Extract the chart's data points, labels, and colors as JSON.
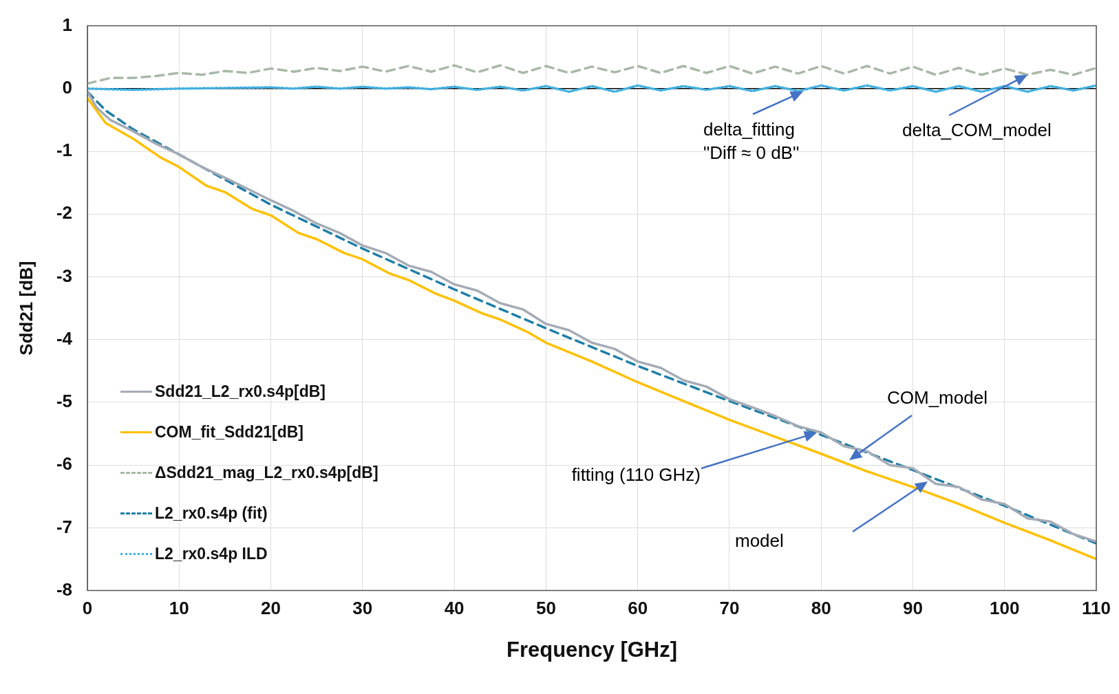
{
  "chart_data": {
    "type": "line",
    "xlabel": "Frequency [GHz]",
    "ylabel": "Sdd21 [dB]",
    "xlim": [
      0,
      110
    ],
    "xticks": [
      0,
      10,
      20,
      30,
      40,
      50,
      60,
      70,
      80,
      90,
      100,
      110
    ],
    "ylim": [
      -8,
      1
    ],
    "yticks": [
      -8,
      -7,
      -6,
      -5,
      -4,
      -3,
      -2,
      -1,
      0,
      1
    ],
    "grid": true,
    "legend": "bottom left",
    "marker": "none",
    "series": [
      {
        "name": "Sdd21_L2_rx0.s4p[dB]",
        "color": "#a5abb5",
        "line_style": "solid",
        "x": [
          0,
          1,
          2.5,
          5,
          7.5,
          10,
          12.5,
          15,
          17.5,
          20,
          22.5,
          25,
          27.5,
          30,
          32.5,
          35,
          37.5,
          40,
          42.5,
          45,
          47.5,
          50,
          52.5,
          55,
          57.5,
          60,
          62.5,
          65,
          67.5,
          70,
          72.5,
          75,
          77.5,
          80,
          82.5,
          85,
          87.5,
          90,
          92.5,
          95,
          97.5,
          100,
          102.5,
          105,
          107.5,
          110
        ],
        "values": [
          -0.05,
          -0.3,
          -0.5,
          -0.68,
          -0.88,
          -1.05,
          -1.25,
          -1.42,
          -1.6,
          -1.78,
          -1.95,
          -2.15,
          -2.3,
          -2.5,
          -2.62,
          -2.82,
          -2.92,
          -3.12,
          -3.22,
          -3.42,
          -3.52,
          -3.75,
          -3.85,
          -4.05,
          -4.15,
          -4.35,
          -4.45,
          -4.65,
          -4.75,
          -4.95,
          -5.08,
          -5.22,
          -5.38,
          -5.48,
          -5.7,
          -5.78,
          -6.0,
          -6.05,
          -6.3,
          -6.35,
          -6.55,
          -6.62,
          -6.85,
          -6.9,
          -7.1,
          -7.22
        ]
      },
      {
        "name": "COM_fit_Sdd21[dB]",
        "color": "#ffc000",
        "line_style": "solid",
        "x": [
          0,
          2,
          5,
          8,
          10,
          13,
          15,
          18,
          20,
          23,
          25,
          28,
          30,
          33,
          35,
          38,
          40,
          43,
          45,
          48,
          50,
          55,
          60,
          65,
          70,
          75,
          80,
          85,
          90,
          95,
          100,
          105,
          110
        ],
        "values": [
          -0.15,
          -0.55,
          -0.8,
          -1.1,
          -1.25,
          -1.55,
          -1.65,
          -1.92,
          -2.02,
          -2.3,
          -2.4,
          -2.62,
          -2.72,
          -2.95,
          -3.05,
          -3.27,
          -3.38,
          -3.58,
          -3.68,
          -3.88,
          -4.05,
          -4.35,
          -4.68,
          -4.98,
          -5.28,
          -5.55,
          -5.82,
          -6.1,
          -6.35,
          -6.62,
          -6.92,
          -7.2,
          -7.5
        ]
      },
      {
        "name": "ΔSdd21_mag_L2_rx0.s4p[dB]",
        "color": "#a9b8a8",
        "line_style": "dashed",
        "x": [
          0,
          2.5,
          5,
          7.5,
          10,
          12.5,
          15,
          17.5,
          20,
          22.5,
          25,
          27.5,
          30,
          32.5,
          35,
          37.5,
          40,
          42.5,
          45,
          47.5,
          50,
          52.5,
          55,
          57.5,
          60,
          62.5,
          65,
          67.5,
          70,
          72.5,
          75,
          77.5,
          80,
          82.5,
          85,
          87.5,
          90,
          92.5,
          95,
          97.5,
          100,
          102.5,
          105,
          107.5,
          110
        ],
        "values": [
          0.08,
          0.17,
          0.17,
          0.2,
          0.25,
          0.22,
          0.28,
          0.25,
          0.32,
          0.27,
          0.33,
          0.28,
          0.35,
          0.27,
          0.36,
          0.27,
          0.37,
          0.26,
          0.37,
          0.25,
          0.36,
          0.25,
          0.35,
          0.26,
          0.36,
          0.25,
          0.36,
          0.25,
          0.36,
          0.24,
          0.35,
          0.24,
          0.36,
          0.24,
          0.36,
          0.24,
          0.35,
          0.22,
          0.33,
          0.22,
          0.32,
          0.22,
          0.3,
          0.22,
          0.33
        ]
      },
      {
        "name": "L2_rx0.s4p (fit)",
        "color": "#1f7fa8",
        "line_style": "dashed",
        "x": [
          0,
          2,
          5,
          10,
          20,
          30,
          40,
          50,
          60,
          70,
          80,
          90,
          100,
          110
        ],
        "values": [
          -0.05,
          -0.35,
          -0.65,
          -1.05,
          -1.85,
          -2.55,
          -3.2,
          -3.82,
          -4.42,
          -4.98,
          -5.52,
          -6.08,
          -6.65,
          -7.25
        ]
      },
      {
        "name": "L2_rx0.s4p ILD",
        "color": "#41b0e0",
        "line_style": "dotted",
        "x": [
          0,
          5,
          10,
          15,
          20,
          22.5,
          25,
          27.5,
          30,
          32.5,
          35,
          37.5,
          40,
          42.5,
          45,
          47.5,
          50,
          52.5,
          55,
          57.5,
          60,
          62.5,
          65,
          67.5,
          70,
          72.5,
          75,
          77.5,
          80,
          82.5,
          85,
          87.5,
          90,
          92.5,
          95,
          97.5,
          100,
          102.5,
          105,
          107.5,
          110
        ],
        "values": [
          0,
          -0.02,
          0,
          0.01,
          0.02,
          0,
          0.03,
          0,
          0.03,
          0,
          0.02,
          -0.01,
          0.03,
          -0.02,
          0.03,
          -0.03,
          0.04,
          -0.05,
          0.04,
          -0.05,
          0.05,
          -0.03,
          0.04,
          -0.02,
          0.04,
          -0.04,
          0.04,
          -0.04,
          0.05,
          -0.03,
          0.05,
          -0.03,
          0.04,
          -0.05,
          0.04,
          -0.05,
          0.04,
          -0.05,
          0.04,
          -0.03,
          0.05
        ]
      }
    ],
    "ref_lines": [
      {
        "axis": "y",
        "value": 0,
        "color": "#000000",
        "line_style": "solid"
      }
    ],
    "annotations": [
      "delta_fitting\n\"Diff ≈ 0 dB\"",
      {
        "text": "delta_COM_model",
        "x": 102.5,
        "y": 0.22
      },
      "fitting (110 GHz)",
      "COM_model",
      "model"
    ]
  }
}
